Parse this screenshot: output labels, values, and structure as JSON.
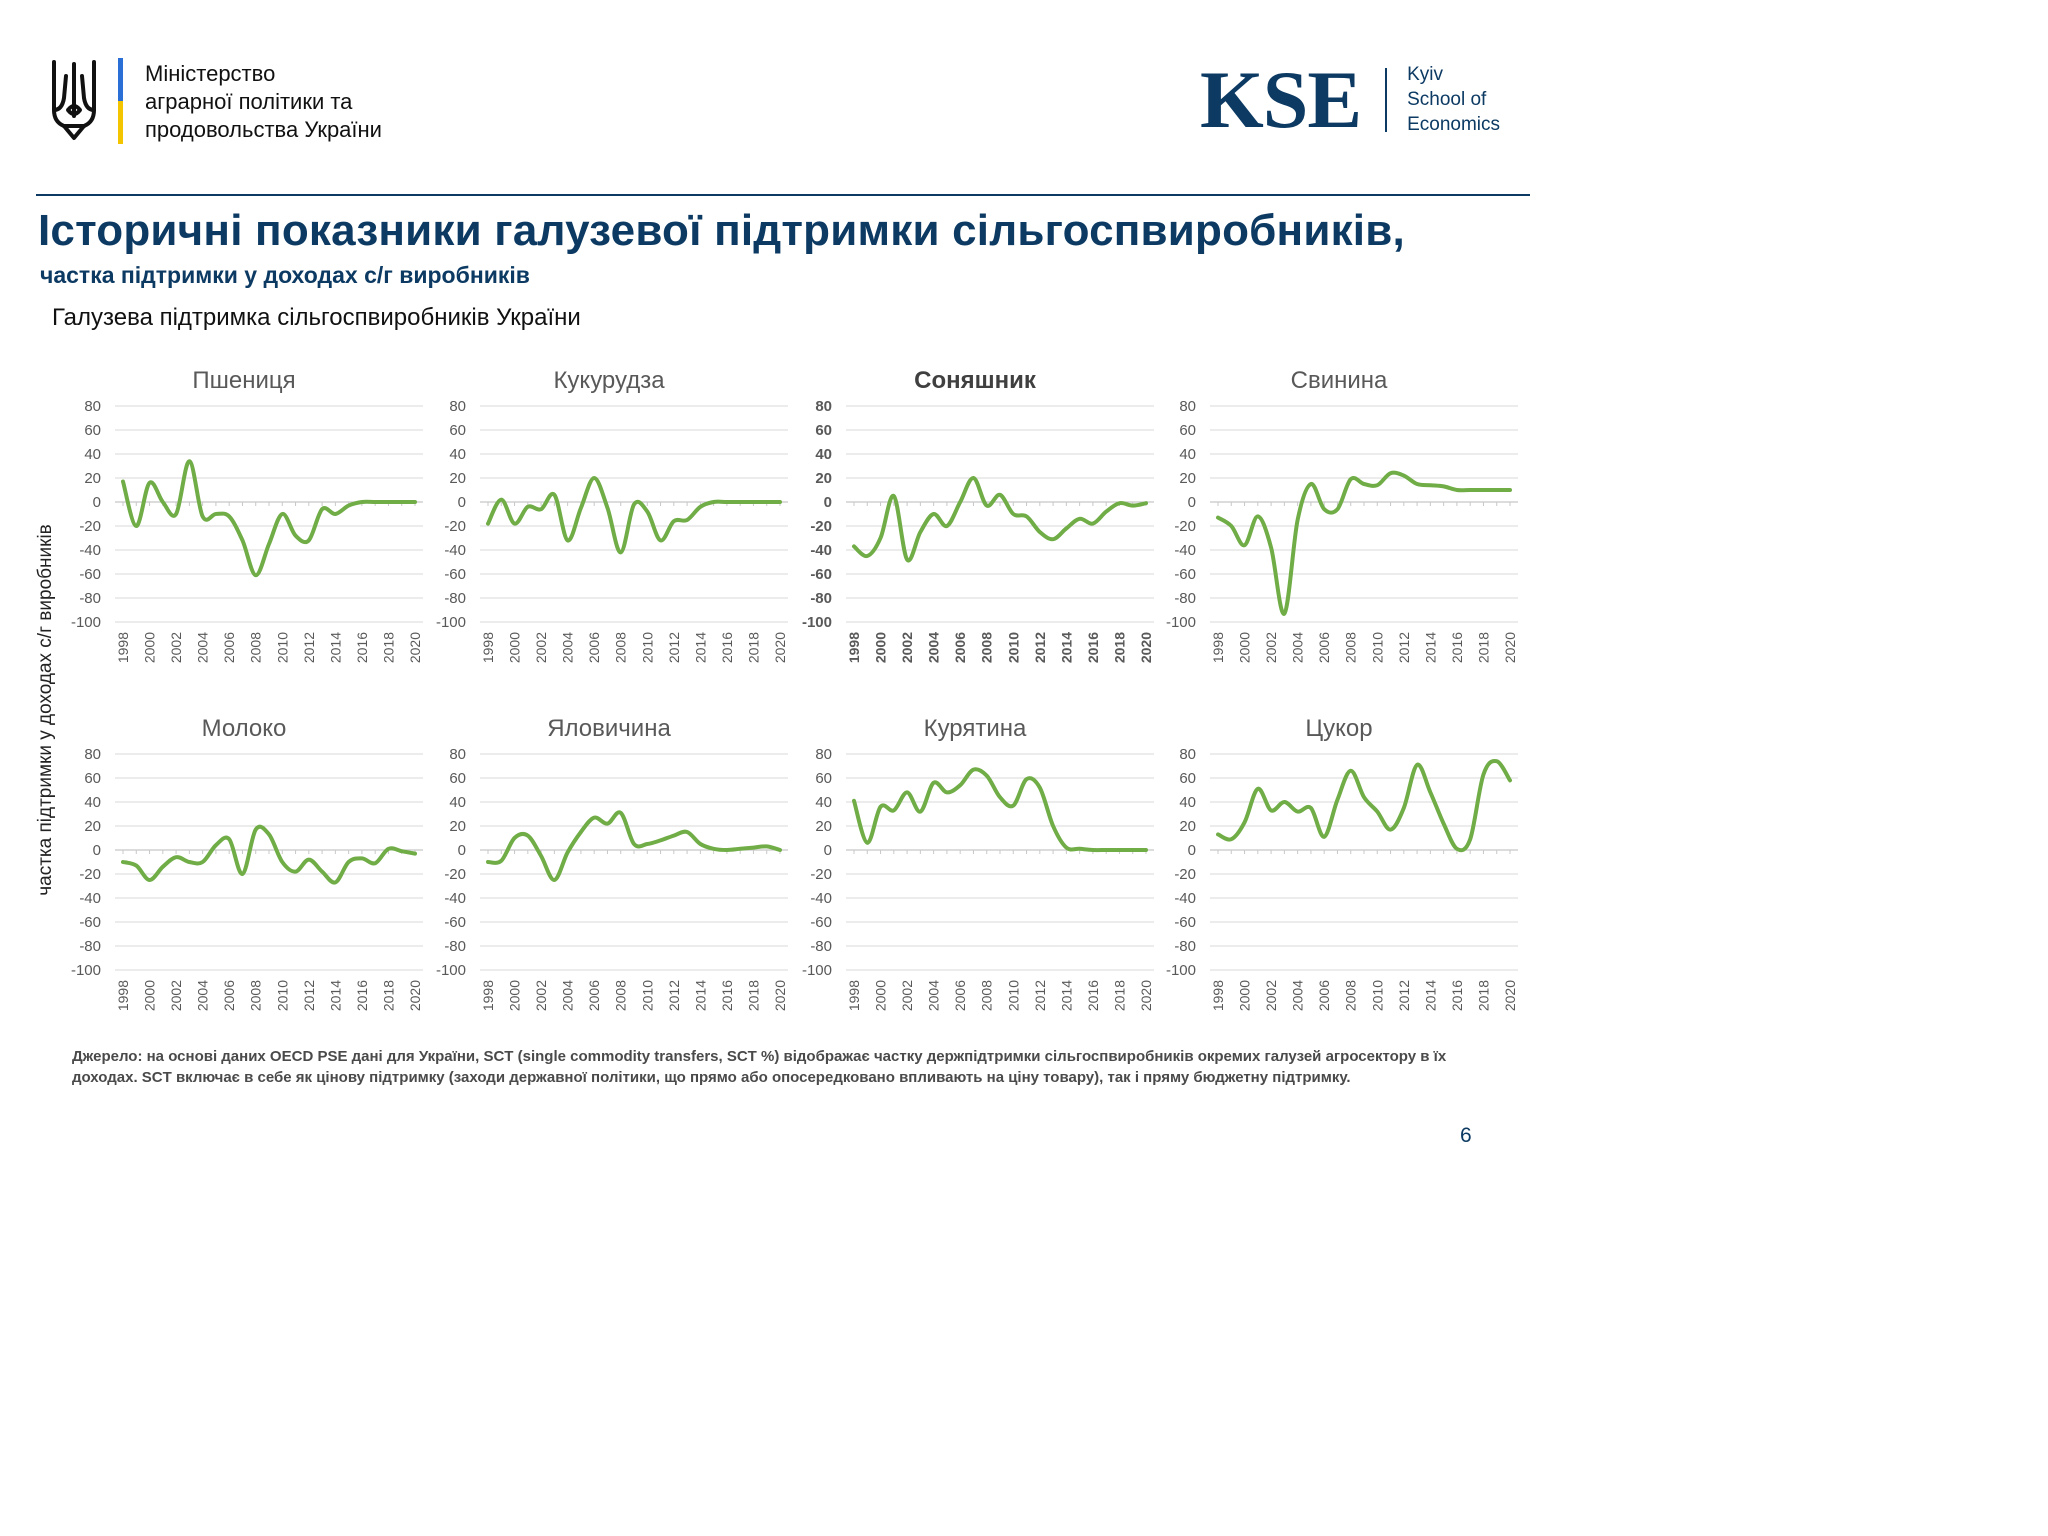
{
  "header": {
    "ministry_lines": [
      "Міністерство",
      "аграрної політики та",
      "продовольства України"
    ],
    "kse_mark": "KSE",
    "kse_lines": [
      "Kyiv",
      "School of",
      "Economics"
    ]
  },
  "title": "Історичні показники галузевої підтримки сільгоспвиробників,",
  "subtitle": "частка підтримки у доходах с/г виробників",
  "caption": "Галузева підтримка сільгоспвиробників України",
  "y_axis_label": "частка підтримки у доходах с/г виробників",
  "source": "Джерело: на основі даних OECD PSE дані для України, SCT (single commodity transfers, SCT %) відображає частку держпідтримки сільгоспвиробників окремих галузей агросектору в їх доходах. SCT включає в себе як цінову підтримку (заходи державної політики, що прямо або опосередковано впливають на ціну товару), так і пряму бюджетну підтримку.",
  "page_number": "6",
  "colors": {
    "navy": "#0c3a63",
    "flag_blue": "#2a6fd6",
    "flag_yellow": "#f2c500",
    "line_green": "#70ad47",
    "grid": "#d9d9d9",
    "tick_text": "#595959",
    "title_text": "#595959"
  },
  "chart_data": [
    {
      "type": "line",
      "title": "Пшениця",
      "x": [
        1998,
        1999,
        2000,
        2001,
        2002,
        2003,
        2004,
        2005,
        2006,
        2007,
        2008,
        2009,
        2010,
        2011,
        2012,
        2013,
        2014,
        2015,
        2016,
        2017,
        2018,
        2019,
        2020
      ],
      "values": [
        17,
        -20,
        16,
        0,
        -10,
        34,
        -12,
        -10,
        -12,
        -32,
        -61,
        -35,
        -10,
        -28,
        -32,
        -6,
        -10,
        -3,
        0,
        0,
        0,
        0,
        0
      ],
      "ylim": [
        -100,
        80
      ],
      "yticks": [
        80,
        60,
        40,
        20,
        0,
        -20,
        -40,
        -60,
        -80,
        -100
      ],
      "xticks": [
        1998,
        2000,
        2002,
        2004,
        2006,
        2008,
        2010,
        2012,
        2014,
        2016,
        2018,
        2020
      ]
    },
    {
      "type": "line",
      "title": "Кукурудза",
      "x": [
        1998,
        1999,
        2000,
        2001,
        2002,
        2003,
        2004,
        2005,
        2006,
        2007,
        2008,
        2009,
        2010,
        2011,
        2012,
        2013,
        2014,
        2015,
        2016,
        2017,
        2018,
        2019,
        2020
      ],
      "values": [
        -18,
        2,
        -18,
        -4,
        -6,
        6,
        -32,
        -5,
        20,
        -5,
        -42,
        -2,
        -8,
        -32,
        -16,
        -15,
        -4,
        0,
        0,
        0,
        0,
        0,
        0
      ],
      "ylim": [
        -100,
        80
      ],
      "yticks": [
        80,
        60,
        40,
        20,
        0,
        -20,
        -40,
        -60,
        -80,
        -100
      ],
      "xticks": [
        1998,
        2000,
        2002,
        2004,
        2006,
        2008,
        2010,
        2012,
        2014,
        2016,
        2018,
        2020
      ]
    },
    {
      "type": "line",
      "title": "Соняшник",
      "x": [
        1998,
        1999,
        2000,
        2001,
        2002,
        2003,
        2004,
        2005,
        2006,
        2007,
        2008,
        2009,
        2010,
        2011,
        2012,
        2013,
        2014,
        2015,
        2016,
        2017,
        2018,
        2019,
        2020
      ],
      "values": [
        -37,
        -45,
        -30,
        5,
        -48,
        -25,
        -10,
        -20,
        0,
        20,
        -3,
        6,
        -10,
        -12,
        -25,
        -31,
        -22,
        -14,
        -18,
        -8,
        -1,
        -3,
        -1
      ],
      "ylim": [
        -100,
        80
      ],
      "yticks": [
        80,
        60,
        40,
        20,
        0,
        -20,
        -40,
        -60,
        -80,
        -100
      ],
      "xticks": [
        1998,
        2000,
        2002,
        2004,
        2006,
        2008,
        2010,
        2012,
        2014,
        2016,
        2018,
        2020
      ]
    },
    {
      "type": "line",
      "title": "Свинина",
      "x": [
        1998,
        1999,
        2000,
        2001,
        2002,
        2003,
        2004,
        2005,
        2006,
        2007,
        2008,
        2009,
        2010,
        2011,
        2012,
        2013,
        2014,
        2015,
        2016,
        2017,
        2018,
        2019,
        2020
      ],
      "values": [
        -13,
        -20,
        -36,
        -12,
        -38,
        -93,
        -15,
        15,
        -6,
        -6,
        19,
        15,
        14,
        24,
        22,
        15,
        14,
        13,
        10,
        10,
        10,
        10,
        10
      ],
      "ylim": [
        -100,
        80
      ],
      "yticks": [
        80,
        60,
        40,
        20,
        0,
        -20,
        -40,
        -60,
        -80,
        -100
      ],
      "xticks": [
        1998,
        2000,
        2002,
        2004,
        2006,
        2008,
        2010,
        2012,
        2014,
        2016,
        2018,
        2020
      ]
    },
    {
      "type": "line",
      "title": "Молоко",
      "x": [
        1998,
        1999,
        2000,
        2001,
        2002,
        2003,
        2004,
        2005,
        2006,
        2007,
        2008,
        2009,
        2010,
        2011,
        2012,
        2013,
        2014,
        2015,
        2016,
        2017,
        2018,
        2019,
        2020
      ],
      "values": [
        -10,
        -13,
        -25,
        -14,
        -6,
        -10,
        -10,
        4,
        9,
        -20,
        17,
        13,
        -10,
        -18,
        -8,
        -18,
        -27,
        -10,
        -7,
        -11,
        1,
        -1,
        -3
      ],
      "ylim": [
        -100,
        80
      ],
      "yticks": [
        80,
        60,
        40,
        20,
        0,
        -20,
        -40,
        -60,
        -80,
        -100
      ],
      "xticks": [
        1998,
        2000,
        2002,
        2004,
        2006,
        2008,
        2010,
        2012,
        2014,
        2016,
        2018,
        2020
      ]
    },
    {
      "type": "line",
      "title": "Яловичина",
      "x": [
        1998,
        1999,
        2000,
        2001,
        2002,
        2003,
        2004,
        2005,
        2006,
        2007,
        2008,
        2009,
        2010,
        2011,
        2012,
        2013,
        2014,
        2015,
        2016,
        2017,
        2018,
        2019,
        2020
      ],
      "values": [
        -10,
        -9,
        10,
        12,
        -5,
        -25,
        -2,
        15,
        27,
        22,
        31,
        5,
        5,
        8,
        12,
        15,
        5,
        1,
        0,
        1,
        2,
        3,
        0
      ],
      "ylim": [
        -100,
        80
      ],
      "yticks": [
        80,
        60,
        40,
        20,
        0,
        -20,
        -40,
        -60,
        -80,
        -100
      ],
      "xticks": [
        1998,
        2000,
        2002,
        2004,
        2006,
        2008,
        2010,
        2012,
        2014,
        2016,
        2018,
        2020
      ]
    },
    {
      "type": "line",
      "title": "Курятина",
      "x": [
        1998,
        1999,
        2000,
        2001,
        2002,
        2003,
        2004,
        2005,
        2006,
        2007,
        2008,
        2009,
        2010,
        2011,
        2012,
        2013,
        2014,
        2015,
        2016,
        2017,
        2018,
        2019,
        2020
      ],
      "values": [
        41,
        6,
        36,
        33,
        48,
        32,
        56,
        48,
        54,
        67,
        62,
        44,
        37,
        59,
        52,
        20,
        2,
        1,
        0,
        0,
        0,
        0,
        0
      ],
      "ylim": [
        -100,
        80
      ],
      "yticks": [
        80,
        60,
        40,
        20,
        0,
        -20,
        -40,
        -60,
        -80,
        -100
      ],
      "xticks": [
        1998,
        2000,
        2002,
        2004,
        2006,
        2008,
        2010,
        2012,
        2014,
        2016,
        2018,
        2020
      ]
    },
    {
      "type": "line",
      "title": "Цукор",
      "x": [
        1998,
        1999,
        2000,
        2001,
        2002,
        2003,
        2004,
        2005,
        2006,
        2007,
        2008,
        2009,
        2010,
        2011,
        2012,
        2013,
        2014,
        2015,
        2016,
        2017,
        2018,
        2019,
        2020
      ],
      "values": [
        13,
        9,
        23,
        51,
        33,
        40,
        32,
        35,
        11,
        42,
        66,
        44,
        32,
        17,
        35,
        71,
        48,
        22,
        1,
        9,
        63,
        74,
        58
      ],
      "ylim": [
        -100,
        80
      ],
      "yticks": [
        80,
        60,
        40,
        20,
        0,
        -20,
        -40,
        -60,
        -80,
        -100
      ],
      "xticks": [
        1998,
        2000,
        2002,
        2004,
        2006,
        2008,
        2010,
        2012,
        2014,
        2016,
        2018,
        2020
      ]
    }
  ]
}
